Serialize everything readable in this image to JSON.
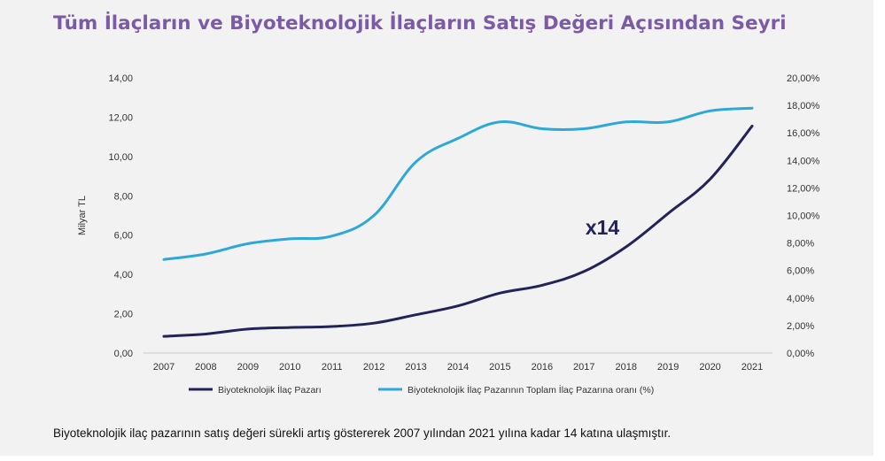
{
  "title": "Tüm İlaçların ve Biyoteknolojik İlaçların Satış Değeri Açısından Seyri",
  "caption": "Biyoteknolojik ilaç pazarının satış değeri sürekli artış göstererek 2007 yılından 2021 yılına kadar 14 katına ulaşmıştır.",
  "chart_data": {
    "type": "line",
    "categories": [
      "2007",
      "2008",
      "2009",
      "2010",
      "2011",
      "2012",
      "2013",
      "2014",
      "2015",
      "2016",
      "2017",
      "2018",
      "2019",
      "2020",
      "2021"
    ],
    "ylabel_left": "Milyar TL",
    "ylim_left": [
      0,
      14
    ],
    "yticks_left": [
      "0,00",
      "2,00",
      "4,00",
      "6,00",
      "8,00",
      "10,00",
      "12,00",
      "14,00"
    ],
    "ylim_right": [
      0,
      20
    ],
    "yticks_right": [
      "0,00%",
      "2,00%",
      "4,00%",
      "6,00%",
      "8,00%",
      "10,00%",
      "12,00%",
      "14,00%",
      "16,00%",
      "18,00%",
      "20,00%"
    ],
    "grid": false,
    "series": [
      {
        "name": "Biyoteknolojik İlaç Pazarı",
        "axis": "left",
        "color": "#23235a",
        "values": [
          0.85,
          0.97,
          1.22,
          1.3,
          1.35,
          1.52,
          1.95,
          2.4,
          3.05,
          3.45,
          4.15,
          5.4,
          7.1,
          8.85,
          11.55
        ]
      },
      {
        "name": "Biyoteknolojik İlaç Pazarının Toplam İlaç Pazarına oranı (%)",
        "axis": "right",
        "color": "#2ea8d8",
        "values": [
          6.8,
          7.2,
          7.95,
          8.3,
          8.5,
          10.0,
          13.9,
          15.6,
          16.8,
          16.3,
          16.3,
          16.8,
          16.8,
          17.6,
          17.8
        ]
      }
    ],
    "annotation": {
      "text": "x14",
      "color": "#23235a"
    }
  }
}
